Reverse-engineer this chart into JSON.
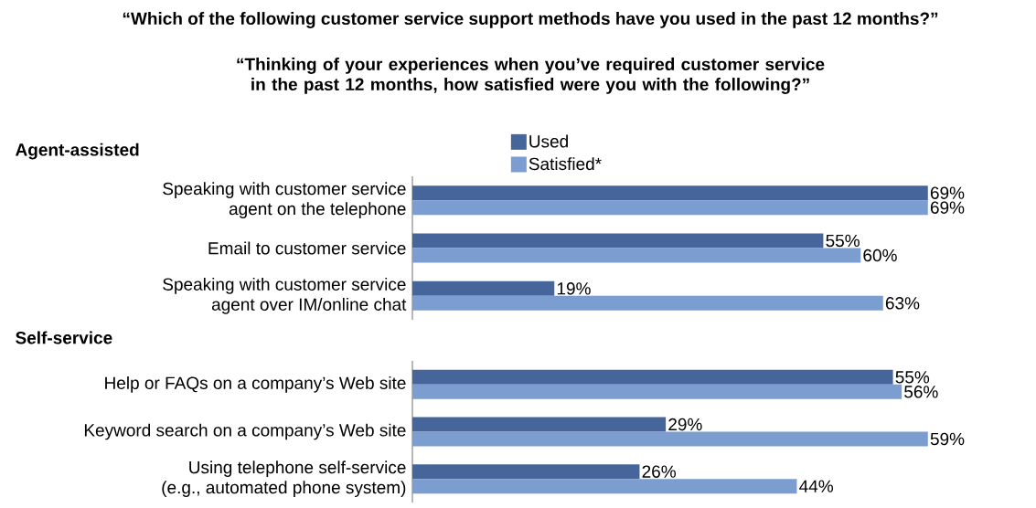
{
  "chart_data": [
    {
      "type": "bar",
      "orientation": "horizontal",
      "title": "Agent-assisted",
      "annotations": [
        "“Which of the following customer service support methods have you used in the past 12 months?”",
        "“Thinking of your experiences when you’ve required customer service in the past 12 months, how satisfied were you with the following?”"
      ],
      "categories": [
        "Speaking with customer service agent on the telephone",
        "Email to customer service",
        "Speaking with customer service agent over IM/online chat"
      ],
      "series": [
        {
          "name": "Used",
          "color": "#46659a",
          "values": [
            69,
            55,
            19
          ],
          "value_labels": [
            "69%",
            "55%",
            "19%"
          ]
        },
        {
          "name": "Satisfied*",
          "color": "#7c9dcf",
          "values": [
            69,
            60,
            63
          ],
          "value_labels": [
            "69%",
            "60%",
            "63%"
          ]
        }
      ],
      "tick_labels": "y",
      "legend": "top"
    },
    {
      "type": "bar",
      "orientation": "horizontal",
      "title": "Self-service",
      "categories": [
        "Help or FAQs on a company’s Web site",
        "Keyword search on a company’s Web site",
        "Using telephone self-service (e.g., automated phone system)"
      ],
      "series": [
        {
          "color": "#46659a",
          "values": [
            55,
            29,
            26
          ],
          "value_labels": [
            "55%",
            "29%",
            "26%"
          ]
        },
        {
          "color": "#7c9dcf",
          "values": [
            56,
            59,
            44
          ],
          "value_labels": [
            "56%",
            "59%",
            "44%"
          ]
        }
      ],
      "tick_labels": "y"
    }
  ]
}
